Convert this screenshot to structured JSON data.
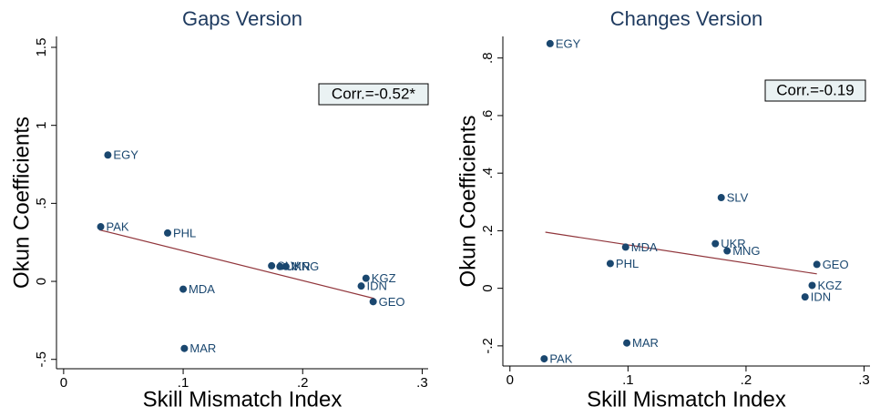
{
  "chart_data": [
    {
      "type": "scatter",
      "title": "Gaps Version",
      "xlabel": "Skill Mismatch Index",
      "ylabel": "Okun Coefficients",
      "annotation": "Corr.=-0.52*",
      "color": "#1a476f",
      "fit_color": "#90353b",
      "point_labels": [
        "EGY",
        "PAK",
        "PHL",
        "MDA",
        "MAR",
        "SLV",
        "UKR",
        "MNG",
        "KGZ",
        "IDN",
        "GEO"
      ],
      "x": [
        0.037,
        0.031,
        0.087,
        0.1,
        0.101,
        0.174,
        0.181,
        0.186,
        0.253,
        0.249,
        0.259
      ],
      "y": [
        0.81,
        0.35,
        0.31,
        -0.05,
        -0.43,
        0.1,
        0.095,
        0.095,
        0.02,
        -0.03,
        -0.13
      ],
      "fit": {
        "x": [
          0.03,
          0.26
        ],
        "y": [
          0.33,
          -0.11
        ]
      },
      "xlim": [
        -0.006,
        0.305
      ],
      "ylim": [
        -0.56,
        1.57
      ],
      "xticks": [
        0,
        {
          "value": 0.1,
          "label": ".1"
        },
        {
          "value": 0.2,
          "label": ".2"
        },
        {
          "value": 0.3,
          "label": ".3"
        }
      ],
      "yticks": [
        {
          "value": -0.5,
          "label": "-.5"
        },
        0,
        {
          "value": 0.5,
          "label": ".5"
        },
        1,
        1.5
      ]
    },
    {
      "type": "scatter",
      "title": "Changes Version",
      "xlabel": "Skill Mismatch Index",
      "ylabel": "Okun Coefficients",
      "annotation": "Corr.=-0.19",
      "color": "#1a476f",
      "fit_color": "#90353b",
      "point_labels": [
        "EGY",
        "SLV",
        "UKR",
        "MNG",
        "MDA",
        "PHL",
        "GEO",
        "KGZ",
        "IDN",
        "MAR",
        "PAK"
      ],
      "x": [
        0.034,
        0.179,
        0.174,
        0.184,
        0.098,
        0.085,
        0.26,
        0.256,
        0.25,
        0.099,
        0.029
      ],
      "y": [
        0.85,
        0.315,
        0.155,
        0.13,
        0.143,
        0.086,
        0.083,
        0.01,
        -0.03,
        -0.19,
        -0.245
      ],
      "fit": {
        "x": [
          0.03,
          0.26
        ],
        "y": [
          0.195,
          0.05
        ]
      },
      "xlim": [
        -0.006,
        0.305
      ],
      "ylim": [
        -0.27,
        0.875
      ],
      "xticks": [
        0,
        {
          "value": 0.1,
          "label": ".1"
        },
        {
          "value": 0.2,
          "label": ".2"
        },
        {
          "value": 0.3,
          "label": ".3"
        }
      ],
      "yticks": [
        {
          "value": -0.2,
          "label": "-.2"
        },
        0,
        {
          "value": 0.2,
          "label": ".2"
        },
        {
          "value": 0.4,
          "label": ".4"
        },
        {
          "value": 0.6,
          "label": ".6"
        },
        {
          "value": 0.8,
          "label": ".8"
        }
      ]
    }
  ]
}
